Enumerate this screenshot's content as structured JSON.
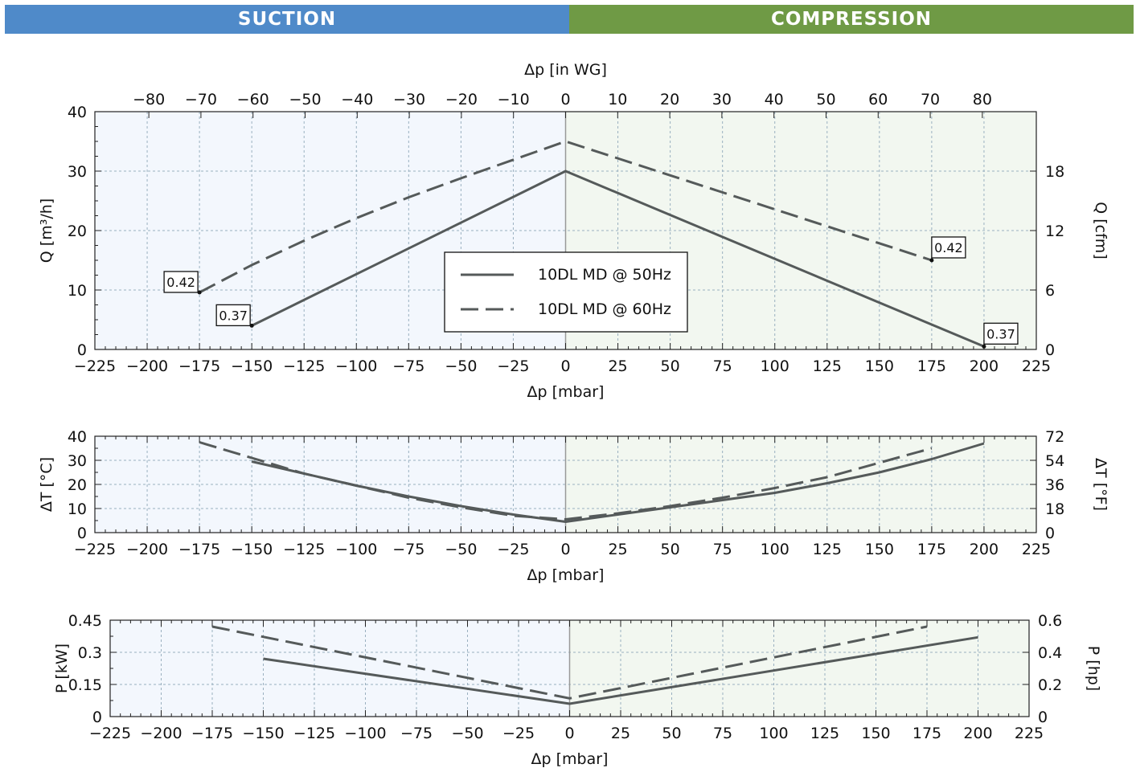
{
  "header": {
    "left_label": "SUCTION",
    "right_label": "COMPRESSION",
    "left_color": "#4f8ac9",
    "right_color": "#6f9a45"
  },
  "colors": {
    "suction_bg": "#f3f7fd",
    "compression_bg": "#f2f7f0",
    "line": "#555a5a",
    "grid": "#9ab0c0"
  },
  "chart_data": [
    {
      "type": "line",
      "title": "",
      "xlabel": "Δp [mbar]",
      "ylabel": "Q [m³/h]",
      "y2label": "Q [cfm]",
      "x2label": "Δp [in WG]",
      "xlim": [
        -225,
        225
      ],
      "ylim": [
        0,
        40
      ],
      "y2lim": [
        0,
        24
      ],
      "xticks": [
        -225,
        -200,
        -175,
        -150,
        -125,
        -100,
        -75,
        -50,
        -25,
        0,
        25,
        50,
        75,
        100,
        125,
        150,
        175,
        200,
        225
      ],
      "yticks": [
        0,
        10,
        20,
        30,
        40
      ],
      "y2ticks": [
        0,
        6,
        12,
        18
      ],
      "x2ticks": [
        -80,
        -70,
        -60,
        -50,
        -40,
        -30,
        -20,
        -10,
        0,
        10,
        20,
        30,
        40,
        50,
        60,
        70,
        80
      ],
      "grid": true,
      "legend": {
        "position": "center",
        "entries": [
          "10DL MD @ 50Hz",
          "10DL MD @ 60Hz"
        ]
      },
      "series": [
        {
          "name": "10DL MD @ 50Hz",
          "style": "solid",
          "x": [
            -150,
            0,
            200
          ],
          "y": [
            4,
            30,
            0.5
          ]
        },
        {
          "name": "10DL MD @ 60Hz",
          "style": "dashed",
          "x": [
            -175,
            -150,
            -125,
            -100,
            -75,
            -50,
            -25,
            0,
            175
          ],
          "y": [
            9.6,
            14.2,
            18.3,
            22.1,
            25.6,
            28.8,
            31.9,
            35,
            15
          ]
        }
      ],
      "annotations": [
        {
          "text": "0.42",
          "x": -175,
          "y": 9.6
        },
        {
          "text": "0.37",
          "x": -150,
          "y": 4
        },
        {
          "text": "0.42",
          "x": 175,
          "y": 15
        },
        {
          "text": "0.37",
          "x": 200,
          "y": 0.5
        }
      ]
    },
    {
      "type": "line",
      "title": "",
      "xlabel": "Δp [mbar]",
      "ylabel": "ΔT [°C]",
      "y2label": "ΔT [°F]",
      "xlim": [
        -225,
        225
      ],
      "ylim": [
        0,
        40
      ],
      "y2lim": [
        0,
        72
      ],
      "xticks": [
        -225,
        -200,
        -175,
        -150,
        -125,
        -100,
        -75,
        -50,
        -25,
        0,
        25,
        50,
        75,
        100,
        125,
        150,
        175,
        200,
        225
      ],
      "yticks": [
        0,
        10,
        20,
        30,
        40
      ],
      "y2ticks": [
        0,
        18,
        36,
        54,
        72
      ],
      "grid": true,
      "series": [
        {
          "name": "10DL MD @ 50Hz",
          "style": "solid",
          "x": [
            -150,
            -125,
            -100,
            -75,
            -50,
            -25,
            0,
            25,
            50,
            75,
            100,
            125,
            150,
            175,
            200
          ],
          "y": [
            29.5,
            24.5,
            19.5,
            15,
            11,
            7.5,
            4.5,
            7.5,
            10.5,
            13.5,
            16.5,
            20.5,
            25,
            30.5,
            37
          ]
        },
        {
          "name": "10DL MD @ 60Hz",
          "style": "dashed",
          "x": [
            -175,
            -150,
            -125,
            -100,
            -75,
            -50,
            -25,
            0,
            25,
            50,
            75,
            100,
            125,
            150,
            175
          ],
          "y": [
            37.5,
            31,
            24.5,
            19.5,
            14.5,
            10.5,
            7,
            5.5,
            8,
            11,
            14.5,
            18.5,
            23,
            29,
            35
          ]
        }
      ]
    },
    {
      "type": "line",
      "title": "",
      "xlabel": "Δp [mbar]",
      "ylabel": "P [kW]",
      "y2label": "P [hp]",
      "xlim": [
        -225,
        225
      ],
      "ylim": [
        0,
        0.45
      ],
      "y2lim": [
        0,
        0.6
      ],
      "xticks": [
        -225,
        -200,
        -175,
        -150,
        -125,
        -100,
        -75,
        -50,
        -25,
        0,
        25,
        50,
        75,
        100,
        125,
        150,
        175,
        200,
        225
      ],
      "yticks": [
        0,
        0.15,
        0.3,
        0.45
      ],
      "ytick_labels": [
        "0",
        "0.15",
        "0.3",
        "0.45"
      ],
      "y2ticks": [
        0,
        0.2,
        0.4,
        0.6
      ],
      "y2tick_labels": [
        "0",
        "0.2",
        "0.4",
        "0.6"
      ],
      "grid": true,
      "series": [
        {
          "name": "10DL MD @ 50Hz",
          "style": "solid",
          "x": [
            -150,
            0,
            200
          ],
          "y": [
            0.27,
            0.06,
            0.37
          ]
        },
        {
          "name": "10DL MD @ 60Hz",
          "style": "dashed",
          "x": [
            -175,
            0,
            175
          ],
          "y": [
            0.42,
            0.085,
            0.42
          ]
        }
      ]
    }
  ]
}
